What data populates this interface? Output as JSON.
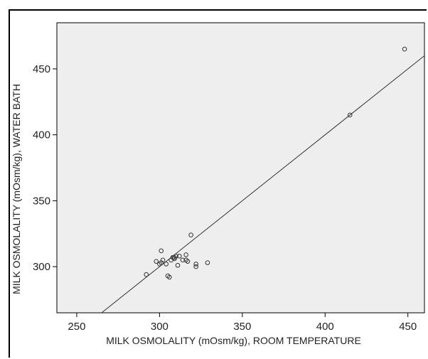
{
  "chart_data": {
    "type": "scatter",
    "title": "",
    "xlabel": "MILK OSMOLALITY (mOsm/kg), ROOM TEMPERATURE",
    "ylabel": "MILK OSMOLALITY (mOsm/kg), WATER BATH",
    "xlim": [
      238,
      460
    ],
    "ylim": [
      265,
      485
    ],
    "xticks": [
      250,
      300,
      350,
      400,
      450
    ],
    "yticks": [
      300,
      350,
      400,
      450
    ],
    "grid": false,
    "legend": "none",
    "plot_background": "#eeeeee",
    "point_color": "#333333",
    "line_color": "#333333",
    "series": [
      {
        "points": [
          [
            292,
            294
          ],
          [
            298,
            304
          ],
          [
            300,
            302
          ],
          [
            301,
            303
          ],
          [
            301,
            312
          ],
          [
            302,
            305
          ],
          [
            304,
            302
          ],
          [
            305,
            293
          ],
          [
            306,
            292
          ],
          [
            307,
            305
          ],
          [
            308,
            307
          ],
          [
            309,
            307
          ],
          [
            309,
            306
          ],
          [
            310,
            308
          ],
          [
            311,
            301
          ],
          [
            312,
            308
          ],
          [
            314,
            305
          ],
          [
            316,
            305
          ],
          [
            316,
            309
          ],
          [
            317,
            304
          ],
          [
            319,
            324
          ],
          [
            322,
            302
          ],
          [
            322,
            300
          ],
          [
            329,
            303
          ],
          [
            415,
            415
          ],
          [
            448,
            465
          ]
        ]
      }
    ],
    "fit_line": {
      "x1": 238,
      "y1": 238,
      "x2": 460,
      "y2": 460
    }
  }
}
